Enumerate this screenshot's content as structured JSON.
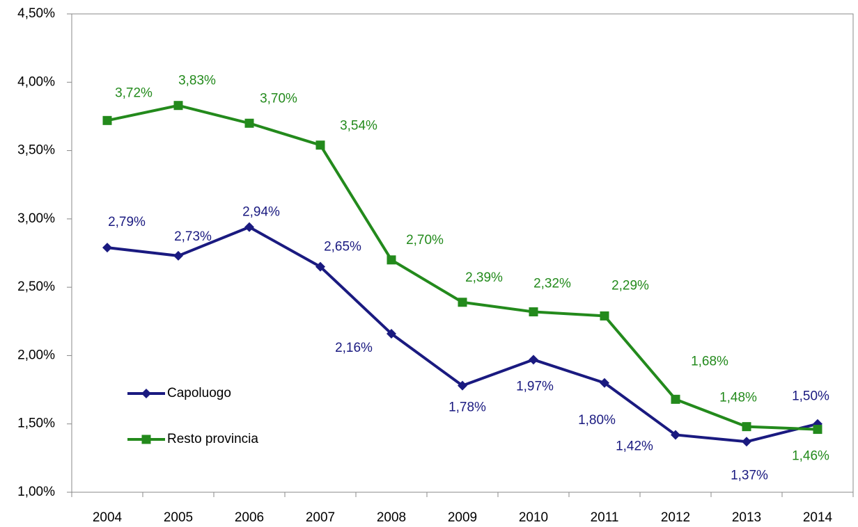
{
  "chart_data": {
    "type": "line",
    "categories": [
      "2004",
      "2005",
      "2006",
      "2007",
      "2008",
      "2009",
      "2010",
      "2011",
      "2012",
      "2013",
      "2014"
    ],
    "series": [
      {
        "name": "Capoluogo",
        "color": "#1a1a80",
        "marker": "diamond",
        "values": [
          2.79,
          2.73,
          2.94,
          2.65,
          2.16,
          1.78,
          1.97,
          1.8,
          1.42,
          1.37,
          1.5
        ],
        "value_labels": [
          "2,79%",
          "2,73%",
          "2,94%",
          "2,65%",
          "2,16%",
          "1,78%",
          "1,97%",
          "1,80%",
          "1,42%",
          "1,37%",
          "1,50%"
        ]
      },
      {
        "name": "Resto provincia",
        "color": "#238a1c",
        "marker": "square",
        "values": [
          3.72,
          3.83,
          3.7,
          3.54,
          2.7,
          2.39,
          2.32,
          2.29,
          1.68,
          1.48,
          1.46
        ],
        "value_labels": [
          "3,72%",
          "3,83%",
          "3,70%",
          "3,54%",
          "2,70%",
          "2,39%",
          "2,32%",
          "2,29%",
          "1,68%",
          "1,48%",
          "1,46%"
        ]
      }
    ],
    "ylim": [
      1,
      4.5
    ],
    "yticks": [
      {
        "value": 1,
        "label": "1,00%"
      },
      {
        "value": 1.5,
        "label": "1,50%"
      },
      {
        "value": 2,
        "label": "2,00%"
      },
      {
        "value": 2.5,
        "label": "2,50%"
      },
      {
        "value": 3,
        "label": "3,00%"
      },
      {
        "value": 3.5,
        "label": "3,50%"
      },
      {
        "value": 4,
        "label": "4,00%"
      },
      {
        "value": 4.5,
        "label": "4,50%"
      }
    ],
    "grid": false,
    "legend": "lower left"
  }
}
